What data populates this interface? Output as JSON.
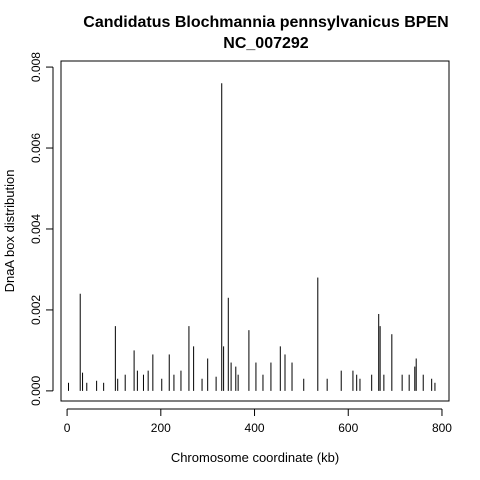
{
  "chart_data": {
    "type": "bar",
    "title": "Candidatus Blochmannia pennsylvanicus BPEN",
    "subtitle": "NC_007292",
    "xlabel": "Chromosome coordinate (kb)",
    "ylabel": "DnaA box distribution",
    "xlim": [
      -13,
      815
    ],
    "ylim": [
      -0.00025,
      0.00815
    ],
    "xticks": [
      0,
      200,
      400,
      600,
      800
    ],
    "yticks": [
      0.0,
      0.002,
      0.004,
      0.006,
      0.008
    ],
    "ytick_labels": [
      "0.000",
      "0.002",
      "0.004",
      "0.006",
      "0.008"
    ],
    "grid": false,
    "x": [
      3,
      28,
      33,
      42,
      63,
      78,
      103,
      108,
      124,
      143,
      150,
      163,
      173,
      183,
      202,
      218,
      228,
      243,
      260,
      270,
      288,
      300,
      318,
      330,
      334,
      344,
      350,
      360,
      365,
      388,
      403,
      418,
      435,
      455,
      465,
      480,
      505,
      535,
      555,
      585,
      610,
      618,
      625,
      650,
      665,
      668,
      676,
      693,
      715,
      730,
      742,
      745,
      760,
      778,
      785
    ],
    "values": [
      0.0002,
      0.0024,
      0.00045,
      0.0002,
      0.00025,
      0.0002,
      0.0016,
      0.0003,
      0.0004,
      0.001,
      0.0005,
      0.0004,
      0.0005,
      0.0009,
      0.0003,
      0.0009,
      0.0004,
      0.0005,
      0.0016,
      0.0011,
      0.0003,
      0.0008,
      0.00035,
      0.0076,
      0.0011,
      0.0023,
      0.0007,
      0.0006,
      0.0004,
      0.0015,
      0.0007,
      0.0004,
      0.0007,
      0.0011,
      0.0009,
      0.0007,
      0.0003,
      0.0028,
      0.0003,
      0.0005,
      0.0005,
      0.0004,
      0.0003,
      0.0004,
      0.0019,
      0.0016,
      0.0004,
      0.0014,
      0.0004,
      0.0004,
      0.0006,
      0.0008,
      0.0004,
      0.0003,
      0.0002
    ]
  }
}
